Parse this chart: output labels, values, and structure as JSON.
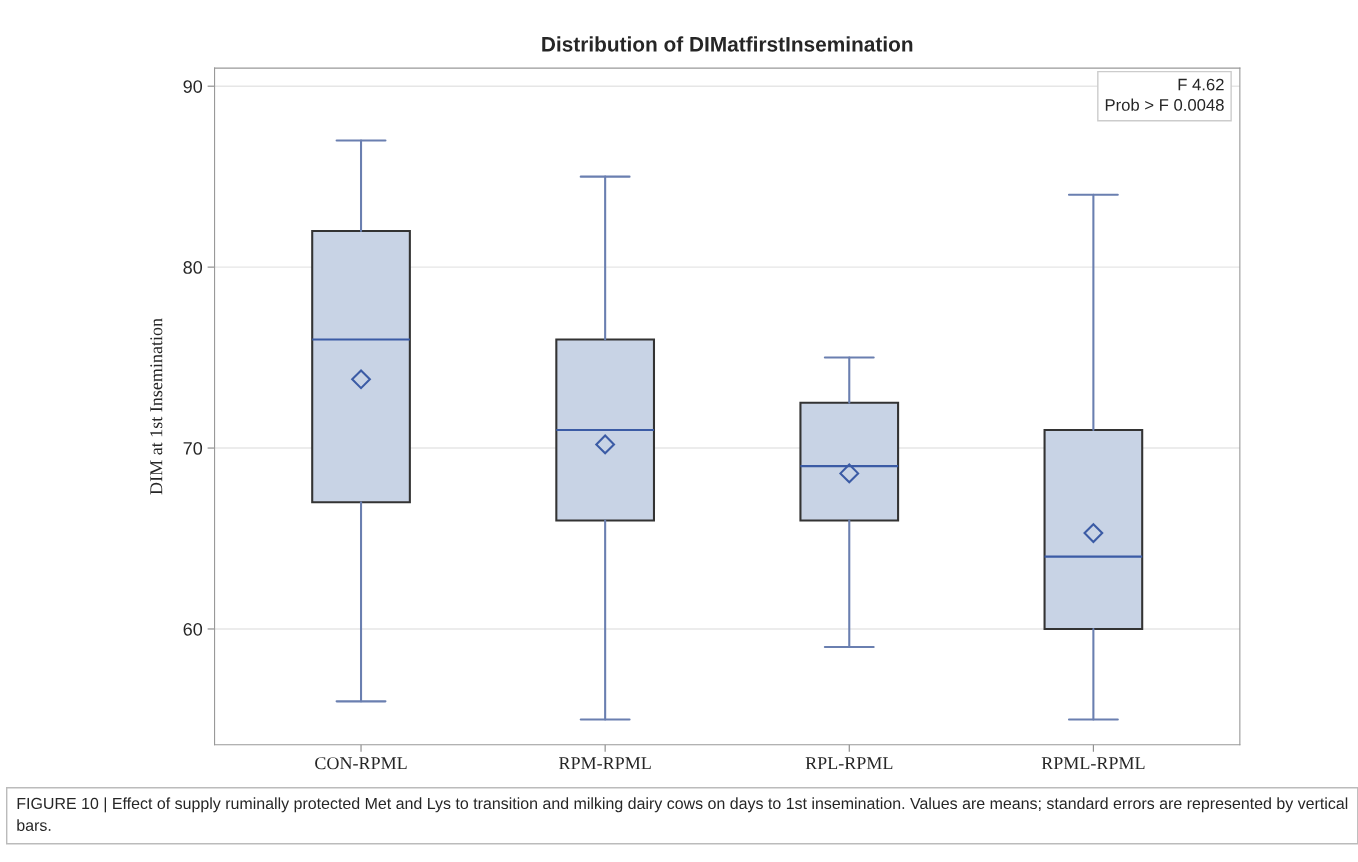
{
  "chart_data": {
    "type": "box",
    "title": "Distribution of DIMatfirstInsemination",
    "ylabel": "DIM at 1st Insemination",
    "categories": [
      "CON-RPML",
      "RPM-RPML",
      "RPL-RPML",
      "RPML-RPML"
    ],
    "boxes": [
      {
        "low": 56,
        "q1": 67,
        "median": 76,
        "q3": 82,
        "high": 87,
        "mean": 73.8
      },
      {
        "low": 55,
        "q1": 66,
        "median": 71,
        "q3": 76,
        "high": 85,
        "mean": 70.2
      },
      {
        "low": 59,
        "q1": 66,
        "median": 69,
        "q3": 72.5,
        "high": 75,
        "mean": 68.6
      },
      {
        "low": 55,
        "q1": 60,
        "median": 64,
        "q3": 71,
        "high": 84,
        "mean": 65.3
      }
    ],
    "color": "#c8d3e5",
    "ylim": [
      53.6,
      91
    ],
    "yticks": [
      60,
      70,
      80,
      90
    ],
    "grid": "y",
    "marker": "diamond",
    "annotations": [
      "F 4.62\nProb > F 0.0048",
      "FIGURE 10 | Effect of supply ruminally protected Met and Lys to transition and milking dairy cows on days to 1st insemination. Values are means; standard errors are represented by vertical bars."
    ]
  }
}
